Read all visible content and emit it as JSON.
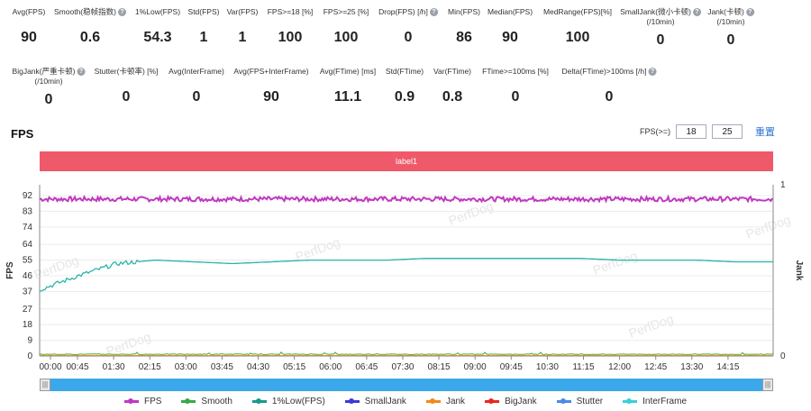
{
  "stats_row1": [
    {
      "label": "Avg(FPS)",
      "value": "90",
      "help": false,
      "x": 32
    },
    {
      "label": "Smooth(稳帧指数)",
      "value": "0.6",
      "help": true,
      "x": 100
    },
    {
      "label": "1%Low(FPS)",
      "value": "54.3",
      "help": false,
      "x": 175
    },
    {
      "label": "Std(FPS)",
      "value": "1",
      "help": false,
      "x": 226
    },
    {
      "label": "Var(FPS)",
      "value": "1",
      "help": false,
      "x": 269
    },
    {
      "label": "FPS>=18 [%]",
      "value": "100",
      "help": false,
      "x": 322
    },
    {
      "label": "FPS>=25 [%]",
      "value": "100",
      "help": false,
      "x": 384
    },
    {
      "label": "Drop(FPS) [/h]",
      "value": "0",
      "help": true,
      "x": 453
    },
    {
      "label": "Min(FPS)",
      "value": "86",
      "help": false,
      "x": 515
    },
    {
      "label": "Median(FPS)",
      "value": "90",
      "help": false,
      "x": 566
    },
    {
      "label": "MedRange(FPS)[%]",
      "value": "100",
      "help": false,
      "x": 641
    },
    {
      "label": "SmallJank(微小卡顿)\n(/10min)",
      "value": "0",
      "help": true,
      "x": 733
    },
    {
      "label": "Jank(卡顿)\n(/10min)",
      "value": "0",
      "help": true,
      "x": 811
    }
  ],
  "stats_row2": [
    {
      "label": "BigJank(严重卡顿)\n(/10min)",
      "value": "0",
      "help": true,
      "x": 54
    },
    {
      "label": "Stutter(卡顿率) [%]",
      "value": "0",
      "help": false,
      "x": 140
    },
    {
      "label": "Avg(InterFrame)",
      "value": "0",
      "help": false,
      "x": 218
    },
    {
      "label": "Avg(FPS+InterFrame)",
      "value": "90",
      "help": false,
      "x": 301
    },
    {
      "label": "Avg(FTime) [ms]",
      "value": "11.1",
      "help": false,
      "x": 386
    },
    {
      "label": "Std(FTime)",
      "value": "0.9",
      "help": false,
      "x": 449
    },
    {
      "label": "Var(FTime)",
      "value": "0.8",
      "help": false,
      "x": 502
    },
    {
      "label": "FTime>=100ms [%]",
      "value": "0",
      "help": false,
      "x": 572
    },
    {
      "label": "Delta(FTime)>100ms [/h]",
      "value": "0",
      "help": true,
      "x": 676
    }
  ],
  "chart_title": "FPS",
  "fps_threshold": {
    "label": "FPS(>=)",
    "value1": "18",
    "value2": "25",
    "reset_label": "重置"
  },
  "label_bar": "label1",
  "chart_data": {
    "type": "line",
    "y_left_label": "FPS",
    "y_right_label": "Jank",
    "y_ticks": [
      0,
      9,
      18,
      27,
      37,
      46,
      55,
      64,
      74,
      83,
      92
    ],
    "y_right_ticks": [
      0,
      1
    ],
    "x_ticks": [
      "00:00",
      "00:45",
      "01:30",
      "02:15",
      "03:00",
      "03:45",
      "04:30",
      "05:15",
      "06:00",
      "06:45",
      "07:30",
      "08:15",
      "09:00",
      "09:45",
      "10:30",
      "11:15",
      "12:00",
      "12:45",
      "13:30",
      "14:15"
    ],
    "watermark": "PerfDog",
    "series": [
      {
        "name": "FPS",
        "color": "#c039c0",
        "approx": 90
      },
      {
        "name": "Smooth",
        "color": "#3aa84a",
        "approx": 0.6
      },
      {
        "name": "1%Low(FPS)",
        "color": "#1a9a8a",
        "profile": [
          38,
          46,
          53,
          55,
          54,
          53,
          54,
          55,
          55,
          55,
          56,
          56,
          56,
          56,
          56,
          55,
          55,
          55,
          54,
          54
        ]
      },
      {
        "name": "SmallJank",
        "color": "#3b3bd6",
        "approx": 0
      },
      {
        "name": "Jank",
        "color": "#f08a1a",
        "approx": 0
      },
      {
        "name": "BigJank",
        "color": "#e8261e",
        "approx": 0
      },
      {
        "name": "Stutter",
        "color": "#4a8ae6",
        "approx": 0
      },
      {
        "name": "InterFrame",
        "color": "#3ad0d8",
        "approx": 0
      }
    ]
  },
  "slider": {
    "left_handle": "|||",
    "right_handle": "|||"
  }
}
